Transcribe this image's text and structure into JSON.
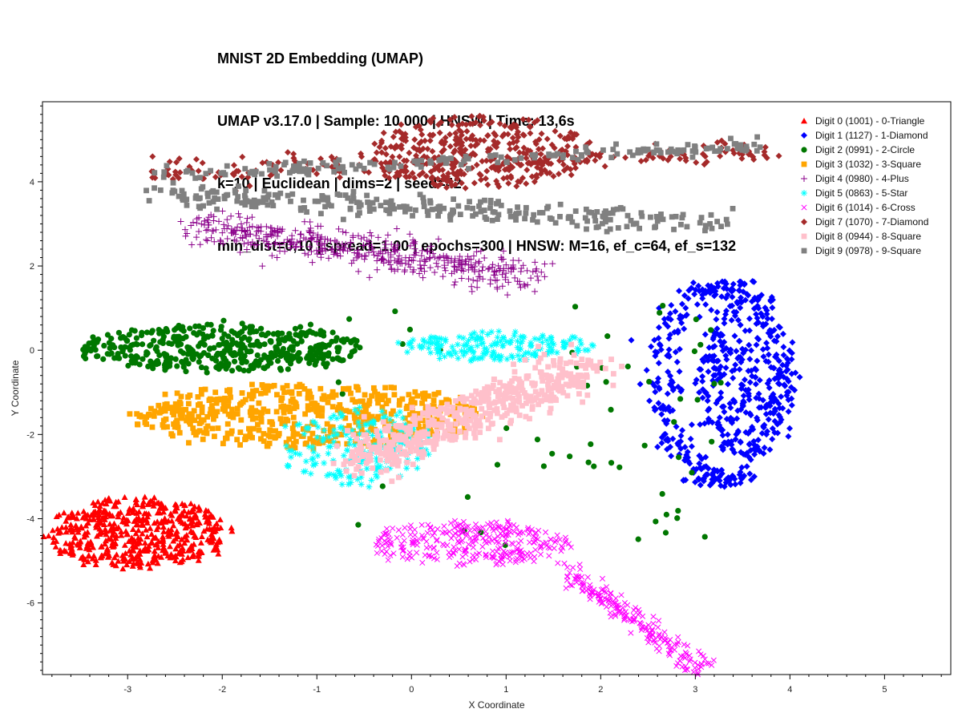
{
  "title_lines": [
    "MNIST 2D Embedding (UMAP)",
    "UMAP v3.17.0 | Sample: 10 000 | HNSW | Time: 13,6s",
    "k=10 | Euclidean | dims=2 | seed=42",
    "min_dist=0,10 | spread=1,00 | epochs=300 | HNSW: M=16, ef_c=64, ef_s=132"
  ],
  "chart_data": {
    "type": "scatter",
    "title": "MNIST 2D Embedding (UMAP)",
    "xlabel": "X Coordinate",
    "ylabel": "Y Coordinate",
    "xlim": [
      -3.9,
      5.7
    ],
    "ylim": [
      -7.7,
      5.9
    ],
    "xticks": [
      -3,
      -2,
      -1,
      0,
      1,
      2,
      3,
      4,
      5
    ],
    "yticks": [
      -6,
      -4,
      -2,
      0,
      2,
      4
    ],
    "grid": false,
    "legend_position": "top-right",
    "series": [
      {
        "name": "Digit 0 (1001) - 0-Triangle",
        "marker": "triangle",
        "color": "#ff0000",
        "clusters": [
          {
            "type": "ellipse",
            "cx": -2.9,
            "cy": -4.35,
            "rx": 0.95,
            "ry": 0.85,
            "n": 520
          }
        ]
      },
      {
        "name": "Digit 1 (1127) - 1-Diamond",
        "marker": "diamond",
        "color": "#0000ff",
        "clusters": [
          {
            "type": "ellipse",
            "cx": 3.55,
            "cy": -0.6,
            "rx": 0.5,
            "ry": 2.0,
            "n": 380
          },
          {
            "type": "arc",
            "cx": 3.3,
            "cy": -0.8,
            "rx": 0.65,
            "ry": 2.3,
            "a0": 70,
            "a1": 290,
            "n": 240
          }
        ]
      },
      {
        "name": "Digit 2 (0991) - 2-Circle",
        "marker": "circle",
        "color": "#007700",
        "clusters": [
          {
            "type": "ellipse",
            "cx": -2.0,
            "cy": 0.05,
            "rx": 1.5,
            "ry": 0.55,
            "n": 460
          },
          {
            "type": "sparse",
            "x0": -1.0,
            "x1": 3.3,
            "y0": -4.7,
            "y1": 1.2,
            "n": 60
          }
        ]
      },
      {
        "name": "Digit 3 (1032) - 3-Square",
        "marker": "square",
        "color": "#ffa500",
        "clusters": [
          {
            "type": "ellipse",
            "cx": -1.1,
            "cy": -1.55,
            "rx": 1.85,
            "ry": 0.75,
            "n": 560
          }
        ]
      },
      {
        "name": "Digit 4 (0980) - 4-Plus",
        "marker": "plus",
        "color": "#8b008b",
        "clusters": [
          {
            "type": "band",
            "x0": -2.3,
            "x1": 1.3,
            "y0": 2.95,
            "y1": 1.75,
            "w": 0.45,
            "n": 470
          }
        ]
      },
      {
        "name": "Digit 5 (0863) - 5-Star",
        "marker": "star",
        "color": "#00ffff",
        "clusters": [
          {
            "type": "ellipse",
            "cx": 0.9,
            "cy": 0.1,
            "rx": 1.0,
            "ry": 0.3,
            "n": 180
          },
          {
            "type": "ellipse",
            "cx": -0.6,
            "cy": -2.3,
            "rx": 0.8,
            "ry": 0.9,
            "n": 200
          }
        ]
      },
      {
        "name": "Digit 6 (1014) - 6-Cross",
        "marker": "cross",
        "color": "#ff00ff",
        "clusters": [
          {
            "type": "ellipse",
            "cx": 0.6,
            "cy": -4.6,
            "rx": 1.05,
            "ry": 0.5,
            "n": 300
          },
          {
            "type": "band",
            "x0": 1.6,
            "x1": 3.1,
            "y0": -5.2,
            "y1": -7.6,
            "w": 0.25,
            "n": 200
          }
        ]
      },
      {
        "name": "Digit 7 (1070) - 7-Diamond",
        "marker": "diamond",
        "color": "#a52a2a",
        "clusters": [
          {
            "type": "ellipse",
            "cx": 0.7,
            "cy": 4.7,
            "rx": 1.2,
            "ry": 0.85,
            "n": 350
          },
          {
            "type": "band",
            "x0": -2.8,
            "x1": 3.8,
            "y0": 4.2,
            "y1": 4.7,
            "w": 0.3,
            "n": 200
          }
        ]
      },
      {
        "name": "Digit 8 (0944) - 8-Square",
        "marker": "square",
        "color": "#ffc0cb",
        "clusters": [
          {
            "type": "band",
            "x0": -0.6,
            "x1": 1.9,
            "y0": -2.6,
            "y1": -0.4,
            "w": 0.55,
            "n": 500
          }
        ]
      },
      {
        "name": "Digit 9 (0978) - 9-Square",
        "marker": "square",
        "color": "#808080",
        "clusters": [
          {
            "type": "band",
            "x0": -2.7,
            "x1": 3.4,
            "y0": 3.7,
            "y1": 3.0,
            "w": 0.28,
            "n": 270
          },
          {
            "type": "band",
            "x0": -2.7,
            "x1": 3.8,
            "y0": 4.15,
            "y1": 4.85,
            "w": 0.15,
            "n": 180
          }
        ]
      }
    ]
  }
}
